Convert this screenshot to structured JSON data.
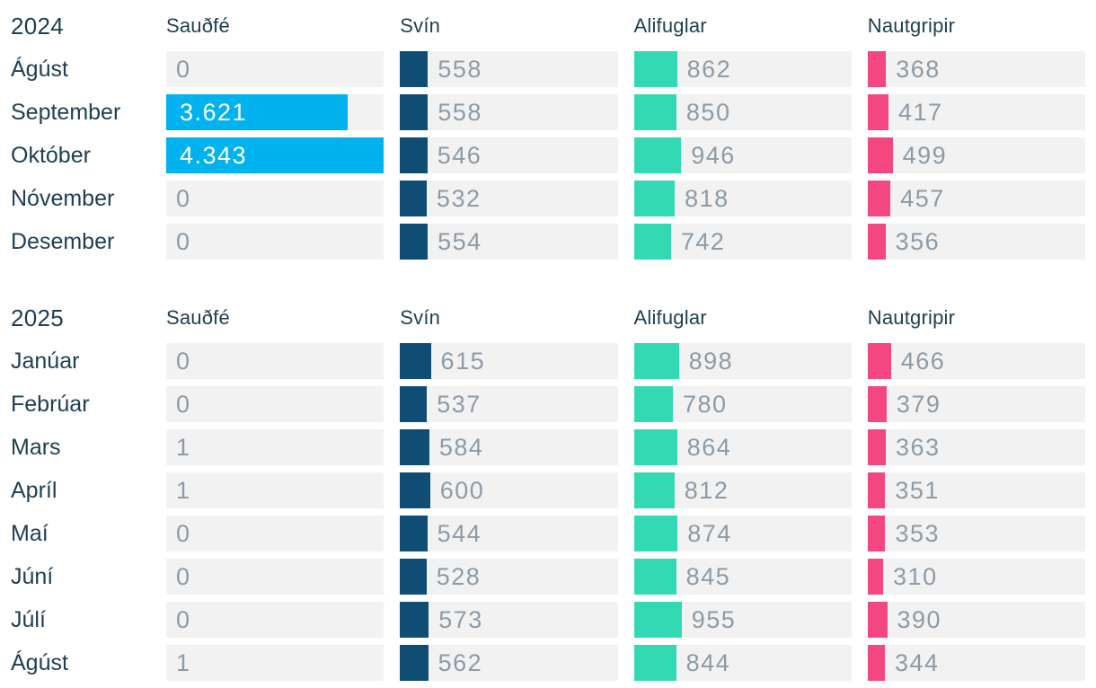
{
  "title_hint": "Monthly slaughter counts by species (Icelandic)",
  "colors": {
    "label_text": "#1e3e52",
    "value_text": "#8d9ba6",
    "value_text_on_bar": "#ffffff",
    "track_background": "#f2f2f3",
    "page_background": "#ffffff"
  },
  "chart_data": {
    "type": "bar",
    "layout": "table of horizontal bars, one row per month, shared linear scale across all columns and sections, legend off, no axes",
    "max_value": 4343,
    "xlim": [
      0,
      4343
    ],
    "number_format": "dot as thousands separator",
    "columns": [
      {
        "label": "Sauðfé",
        "color": "#00b2ee"
      },
      {
        "label": "Svín",
        "color": "#0f4d74"
      },
      {
        "label": "Alifuglar",
        "color": "#33d9b2"
      },
      {
        "label": "Nautgripir",
        "color": "#f5477f"
      }
    ],
    "sections": [
      {
        "year": "2024",
        "rows": [
          {
            "month": "Ágúst",
            "values": [
              0,
              558,
              862,
              368
            ],
            "labels": [
              "0",
              "558",
              "862",
              "368"
            ]
          },
          {
            "month": "September",
            "values": [
              3621,
              558,
              850,
              417
            ],
            "labels": [
              "3.621",
              "558",
              "850",
              "417"
            ]
          },
          {
            "month": "Október",
            "values": [
              4343,
              546,
              946,
              499
            ],
            "labels": [
              "4.343",
              "546",
              "946",
              "499"
            ]
          },
          {
            "month": "Nóvember",
            "values": [
              0,
              532,
              818,
              457
            ],
            "labels": [
              "0",
              "532",
              "818",
              "457"
            ]
          },
          {
            "month": "Desember",
            "values": [
              0,
              554,
              742,
              356
            ],
            "labels": [
              "0",
              "554",
              "742",
              "356"
            ]
          }
        ]
      },
      {
        "year": "2025",
        "rows": [
          {
            "month": "Janúar",
            "values": [
              0,
              615,
              898,
              466
            ],
            "labels": [
              "0",
              "615",
              "898",
              "466"
            ]
          },
          {
            "month": "Febrúar",
            "values": [
              0,
              537,
              780,
              379
            ],
            "labels": [
              "0",
              "537",
              "780",
              "379"
            ]
          },
          {
            "month": "Mars",
            "values": [
              1,
              584,
              864,
              363
            ],
            "labels": [
              "1",
              "584",
              "864",
              "363"
            ]
          },
          {
            "month": "Apríl",
            "values": [
              1,
              600,
              812,
              351
            ],
            "labels": [
              "1",
              "600",
              "812",
              "351"
            ]
          },
          {
            "month": "Maí",
            "values": [
              0,
              544,
              874,
              353
            ],
            "labels": [
              "0",
              "544",
              "874",
              "353"
            ]
          },
          {
            "month": "Júní",
            "values": [
              0,
              528,
              845,
              310
            ],
            "labels": [
              "0",
              "528",
              "845",
              "310"
            ]
          },
          {
            "month": "Júlí",
            "values": [
              0,
              573,
              955,
              390
            ],
            "labels": [
              "0",
              "573",
              "955",
              "390"
            ]
          },
          {
            "month": "Ágúst",
            "values": [
              1,
              562,
              844,
              344
            ],
            "labels": [
              "1",
              "562",
              "844",
              "344"
            ]
          }
        ]
      }
    ]
  }
}
